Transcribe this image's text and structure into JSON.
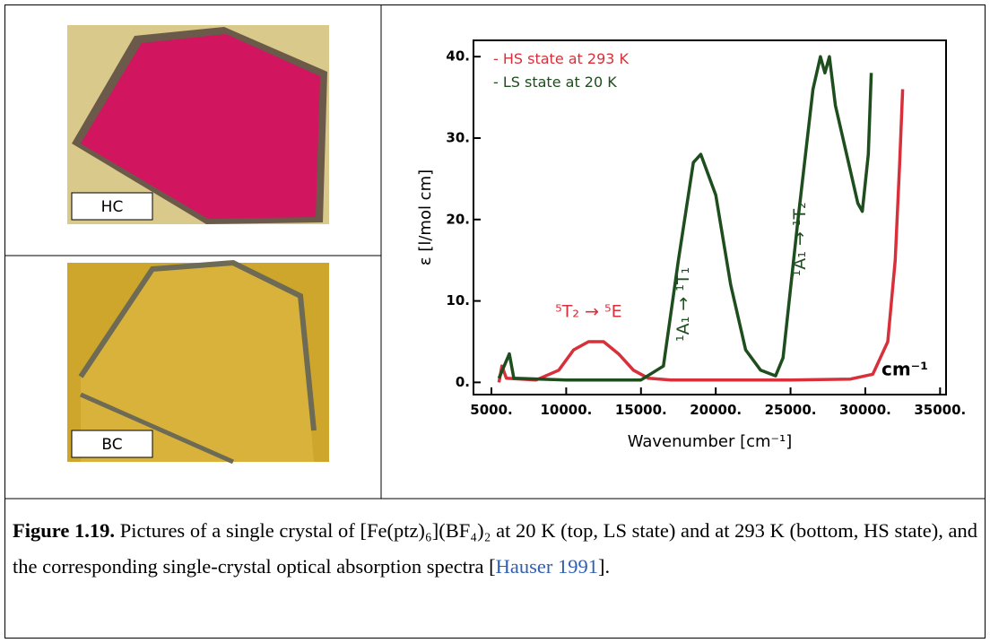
{
  "photos": {
    "top_label": "HC",
    "bottom_label": "BC"
  },
  "chart_data": {
    "type": "line",
    "xlabel": "Wavenumber [cm⁻¹]",
    "ylabel": "ε [l/mol cm]",
    "unit_label": "cm⁻¹",
    "xlim": [
      3800,
      35400
    ],
    "ylim": [
      -1.5,
      42
    ],
    "xticks": [
      {
        "value": 5000,
        "label": "5000."
      },
      {
        "value": 10000,
        "label": "10000."
      },
      {
        "value": 15000,
        "label": "15000."
      },
      {
        "value": 20000,
        "label": "20000."
      },
      {
        "value": 25000,
        "label": "25000."
      },
      {
        "value": 30000,
        "label": "30000."
      },
      {
        "value": 35000,
        "label": "35000."
      }
    ],
    "yticks": [
      {
        "value": 0,
        "label": "0."
      },
      {
        "value": 10,
        "label": "10."
      },
      {
        "value": 20,
        "label": "20."
      },
      {
        "value": 30,
        "label": "30."
      },
      {
        "value": 40,
        "label": "40."
      }
    ],
    "series": [
      {
        "name": "- HS state at 293 K",
        "color": "#d8303a",
        "x": [
          5500,
          5700,
          6000,
          8000,
          9500,
          10500,
          11500,
          12500,
          13500,
          14500,
          15500,
          17000,
          20000,
          25000,
          29000,
          30500,
          31500,
          32000,
          32300,
          32500
        ],
        "values": [
          0,
          2,
          0.5,
          0.3,
          1.5,
          4,
          5,
          5,
          3.5,
          1.5,
          0.5,
          0.3,
          0.3,
          0.3,
          0.4,
          1,
          5,
          15,
          27,
          36
        ]
      },
      {
        "name": "- LS state at 20 K",
        "color": "#1e4d1e",
        "x": [
          5500,
          6200,
          6500,
          10000,
          15000,
          16500,
          17500,
          18500,
          19000,
          20000,
          21000,
          22000,
          23000,
          24000,
          24500,
          25500,
          26500,
          27000,
          27300,
          27600,
          28000,
          29000,
          29500,
          29800,
          30200,
          30400
        ],
        "values": [
          0.5,
          3.5,
          0.5,
          0.3,
          0.3,
          2,
          15,
          27,
          28,
          23,
          12,
          4,
          1.5,
          0.8,
          3,
          20,
          36,
          40,
          38,
          40,
          34,
          26,
          22,
          21,
          28,
          38
        ]
      }
    ],
    "annotations": [
      "⁵T₂ → ⁵E",
      "¹A₁ → ¹T₁",
      "¹A₁ → ¹T₂"
    ]
  },
  "caption": {
    "label": "Figure 1.19.",
    "text": " Pictures of a single crystal of [Fe(ptz)₆](BF₄)₂ at 20 K (top, LS state) and at 293 K (bottom, HS state), and the corresponding single-crystal optical absorption spectra [",
    "citation": "Hauser 1991",
    "end": "]."
  }
}
